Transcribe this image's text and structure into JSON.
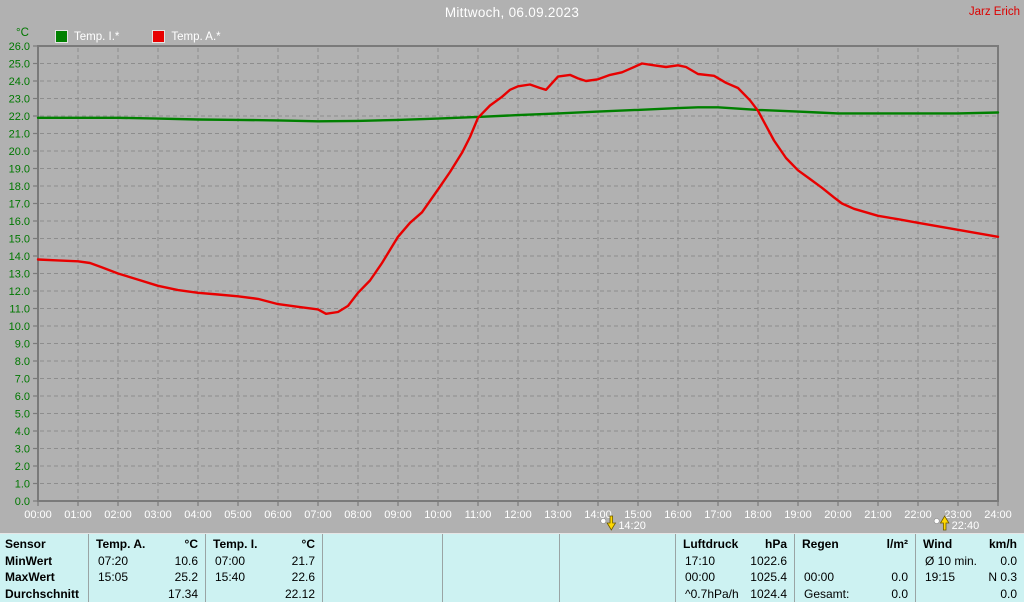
{
  "header": {
    "title": "Mittwoch, 06.09.2023",
    "watermark": "Jarz Erich"
  },
  "chart": {
    "unit_label": "°C",
    "legend": [
      {
        "label": "Temp. I.*",
        "color": "#008000"
      },
      {
        "label": "Temp. A.*",
        "color": "#e80000"
      }
    ]
  },
  "chart_data": {
    "type": "line",
    "title": "Mittwoch, 06.09.2023",
    "ylabel": "°C",
    "ylim": [
      0,
      26
    ],
    "ytick_step": 1.0,
    "ytick_labels": [
      "0.0",
      "1.0",
      "2.0",
      "3.0",
      "4.0",
      "5.0",
      "6.0",
      "7.0",
      "8.0",
      "9.0",
      "10.0",
      "11.0",
      "12.0",
      "13.0",
      "14.0",
      "15.0",
      "16.0",
      "17.0",
      "18.0",
      "19.0",
      "20.0",
      "21.0",
      "22.0",
      "23.0",
      "24.0",
      "25.0",
      "26.0"
    ],
    "xlim_hours": [
      0,
      24
    ],
    "xtick_labels": [
      "00:00",
      "01:00",
      "02:00",
      "03:00",
      "04:00",
      "05:00",
      "06:00",
      "07:00",
      "08:00",
      "09:00",
      "10:00",
      "11:00",
      "12:00",
      "13:00",
      "14:00",
      "15:00",
      "16:00",
      "17:00",
      "18:00",
      "19:00",
      "20:00",
      "21:00",
      "22:00",
      "23:00",
      "24:00"
    ],
    "grid": true,
    "legend_position": "top-left",
    "series": [
      {
        "name": "Temp. I.*",
        "color": "#008000",
        "points": [
          [
            0,
            21.9
          ],
          [
            1,
            21.9
          ],
          [
            2,
            21.9
          ],
          [
            3,
            21.85
          ],
          [
            4,
            21.8
          ],
          [
            5,
            21.78
          ],
          [
            6,
            21.75
          ],
          [
            7,
            21.7
          ],
          [
            8,
            21.72
          ],
          [
            9,
            21.78
          ],
          [
            10,
            21.85
          ],
          [
            11,
            21.95
          ],
          [
            12,
            22.05
          ],
          [
            13,
            22.15
          ],
          [
            14,
            22.25
          ],
          [
            15,
            22.35
          ],
          [
            16,
            22.45
          ],
          [
            16.5,
            22.5
          ],
          [
            17,
            22.5
          ],
          [
            18,
            22.35
          ],
          [
            19,
            22.25
          ],
          [
            19.5,
            22.2
          ],
          [
            20,
            22.15
          ],
          [
            21,
            22.15
          ],
          [
            22,
            22.15
          ],
          [
            23,
            22.15
          ],
          [
            24,
            22.2
          ]
        ]
      },
      {
        "name": "Temp. A.*",
        "color": "#e80000",
        "points": [
          [
            0,
            13.8
          ],
          [
            0.5,
            13.75
          ],
          [
            1,
            13.7
          ],
          [
            1.3,
            13.6
          ],
          [
            1.6,
            13.35
          ],
          [
            2,
            13.0
          ],
          [
            2.5,
            12.65
          ],
          [
            3,
            12.3
          ],
          [
            3.5,
            12.05
          ],
          [
            4,
            11.9
          ],
          [
            4.5,
            11.8
          ],
          [
            5,
            11.7
          ],
          [
            5.5,
            11.55
          ],
          [
            6,
            11.25
          ],
          [
            6.5,
            11.1
          ],
          [
            7,
            10.95
          ],
          [
            7.2,
            10.7
          ],
          [
            7.5,
            10.8
          ],
          [
            7.75,
            11.15
          ],
          [
            8,
            11.9
          ],
          [
            8.3,
            12.6
          ],
          [
            8.6,
            13.6
          ],
          [
            9,
            15.1
          ],
          [
            9.3,
            15.9
          ],
          [
            9.6,
            16.5
          ],
          [
            10,
            17.8
          ],
          [
            10.3,
            18.8
          ],
          [
            10.6,
            19.9
          ],
          [
            10.8,
            20.8
          ],
          [
            11,
            21.9
          ],
          [
            11.3,
            22.6
          ],
          [
            11.6,
            23.1
          ],
          [
            11.8,
            23.5
          ],
          [
            12,
            23.7
          ],
          [
            12.3,
            23.8
          ],
          [
            12.55,
            23.6
          ],
          [
            12.7,
            23.5
          ],
          [
            13,
            24.25
          ],
          [
            13.3,
            24.35
          ],
          [
            13.5,
            24.15
          ],
          [
            13.7,
            24.0
          ],
          [
            14,
            24.1
          ],
          [
            14.3,
            24.35
          ],
          [
            14.6,
            24.5
          ],
          [
            14.8,
            24.7
          ],
          [
            15.1,
            25.0
          ],
          [
            15.4,
            24.9
          ],
          [
            15.7,
            24.8
          ],
          [
            16,
            24.9
          ],
          [
            16.2,
            24.8
          ],
          [
            16.5,
            24.4
          ],
          [
            16.9,
            24.3
          ],
          [
            17.2,
            23.9
          ],
          [
            17.5,
            23.6
          ],
          [
            17.8,
            22.9
          ],
          [
            18,
            22.3
          ],
          [
            18.4,
            20.6
          ],
          [
            18.7,
            19.6
          ],
          [
            19,
            18.9
          ],
          [
            19.3,
            18.4
          ],
          [
            19.6,
            17.9
          ],
          [
            19.9,
            17.35
          ],
          [
            20.1,
            17.0
          ],
          [
            20.4,
            16.7
          ],
          [
            20.7,
            16.5
          ],
          [
            21,
            16.3
          ],
          [
            21.5,
            16.1
          ],
          [
            22,
            15.9
          ],
          [
            22.5,
            15.7
          ],
          [
            23,
            15.5
          ],
          [
            23.5,
            15.3
          ],
          [
            24,
            15.1
          ]
        ]
      }
    ],
    "markers": [
      {
        "hour": 14.333,
        "label": "14:20",
        "direction": "down"
      },
      {
        "hour": 22.667,
        "label": "22:40",
        "direction": "up"
      }
    ]
  },
  "table": {
    "row_labels": [
      "Sensor",
      "MinWert",
      "MaxWert",
      "Durchschnitt"
    ],
    "groups": [
      {
        "header": "Temp. A.",
        "unit": "°C",
        "cells": [
          [
            "07:20",
            "10.6"
          ],
          [
            "15:05",
            "25.2"
          ],
          [
            "",
            "17.34"
          ]
        ]
      },
      {
        "header": "Temp. I.",
        "unit": "°C",
        "cells": [
          [
            "07:00",
            "21.7"
          ],
          [
            "15:40",
            "22.6"
          ],
          [
            "",
            "22.12"
          ]
        ]
      },
      {
        "header": "",
        "unit": "",
        "cells": [
          [
            "",
            ""
          ],
          [
            "",
            ""
          ],
          [
            "",
            ""
          ]
        ]
      },
      {
        "header": "",
        "unit": "",
        "cells": [
          [
            "",
            ""
          ],
          [
            "",
            ""
          ],
          [
            "",
            ""
          ]
        ]
      },
      {
        "header": "",
        "unit": "",
        "cells": [
          [
            "",
            ""
          ],
          [
            "",
            ""
          ],
          [
            "",
            ""
          ]
        ]
      },
      {
        "header": "Luftdruck",
        "unit": "hPa",
        "cells": [
          [
            "17:10",
            "1022.6"
          ],
          [
            "00:00",
            "1025.4"
          ],
          [
            "^0.7hPa/h",
            "1024.4"
          ]
        ]
      },
      {
        "header": "Regen",
        "unit": "l/m²",
        "cells": [
          [
            "",
            ""
          ],
          [
            "00:00",
            "0.0"
          ],
          [
            "Gesamt:",
            "0.0"
          ]
        ]
      },
      {
        "header": "Wind",
        "unit": "km/h",
        "cells": [
          [
            "Ø 10 min.",
            "0.0"
          ],
          [
            "19:15",
            "N 0.3"
          ],
          [
            "",
            "0.0"
          ]
        ]
      }
    ]
  },
  "colors": {
    "background": "#b1b1b1",
    "plot_frame": "#7a7a7a",
    "grid": "#8d8d8d",
    "temp_i": "#008000",
    "temp_a": "#e80000",
    "y_axis_text": "#007800",
    "x_axis_text": "#ffffff",
    "title_text": "#ffffff",
    "watermark_text": "#dd0000",
    "table_bg": "#cdf2f2",
    "marker": "#ffd800"
  }
}
